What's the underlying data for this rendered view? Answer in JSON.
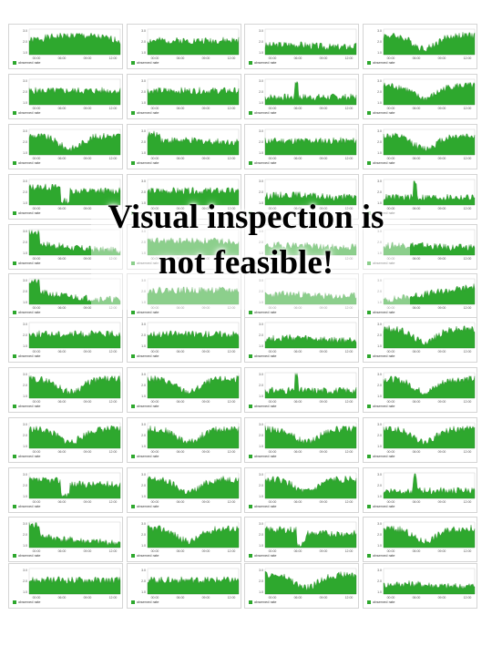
{
  "overlay": {
    "line1": "Visual inspection is",
    "line2": "not feasible!"
  },
  "chart_data": {
    "type": "area",
    "panel_grid": {
      "rows": 12,
      "cols": 4
    },
    "series_color": "#2ea82e",
    "legend": "observed rate",
    "y_ticks": [
      "3.0",
      "2.0",
      "1.0"
    ],
    "x_ticks": [
      "00:00",
      "06:00",
      "09:00",
      "12:00"
    ],
    "panels": [
      {
        "shape": "hump",
        "seed": 1
      },
      {
        "shape": "flat",
        "seed": 2
      },
      {
        "shape": "low",
        "seed": 3
      },
      {
        "shape": "valley",
        "seed": 4
      },
      {
        "shape": "flat",
        "seed": 5
      },
      {
        "shape": "flat",
        "seed": 6
      },
      {
        "shape": "spike",
        "seed": 7
      },
      {
        "shape": "valley",
        "seed": 8
      },
      {
        "shape": "valley",
        "seed": 9
      },
      {
        "shape": "drop",
        "seed": 10
      },
      {
        "shape": "flat",
        "seed": 11
      },
      {
        "shape": "valley",
        "seed": 12
      },
      {
        "shape": "dip",
        "seed": 13
      },
      {
        "shape": "flat",
        "seed": 14
      },
      {
        "shape": "low",
        "seed": 15
      },
      {
        "shape": "spike",
        "seed": 16
      },
      {
        "shape": "decay",
        "seed": 17
      },
      {
        "shape": "flat",
        "seed": 18
      },
      {
        "shape": "low",
        "seed": 19
      },
      {
        "shape": "low",
        "seed": 20
      },
      {
        "shape": "decay",
        "seed": 21
      },
      {
        "shape": "flat",
        "seed": 22
      },
      {
        "shape": "low",
        "seed": 23
      },
      {
        "shape": "rise",
        "seed": 24
      },
      {
        "shape": "flat",
        "seed": 25
      },
      {
        "shape": "flat",
        "seed": 26
      },
      {
        "shape": "low",
        "seed": 27
      },
      {
        "shape": "valley",
        "seed": 28
      },
      {
        "shape": "valley",
        "seed": 29
      },
      {
        "shape": "valley",
        "seed": 30
      },
      {
        "shape": "spike",
        "seed": 31
      },
      {
        "shape": "valley",
        "seed": 32
      },
      {
        "shape": "valley",
        "seed": 33
      },
      {
        "shape": "valley",
        "seed": 34
      },
      {
        "shape": "valley",
        "seed": 35
      },
      {
        "shape": "valley",
        "seed": 36
      },
      {
        "shape": "dip",
        "seed": 37
      },
      {
        "shape": "valley",
        "seed": 38
      },
      {
        "shape": "valley",
        "seed": 39
      },
      {
        "shape": "spike",
        "seed": 40
      },
      {
        "shape": "decay",
        "seed": 41
      },
      {
        "shape": "valley",
        "seed": 42
      },
      {
        "shape": "dip",
        "seed": 43
      },
      {
        "shape": "valley",
        "seed": 44
      },
      {
        "shape": "flat",
        "seed": 45
      },
      {
        "shape": "flat",
        "seed": 46
      },
      {
        "shape": "valley",
        "seed": 47
      },
      {
        "shape": "low",
        "seed": 48
      }
    ]
  }
}
